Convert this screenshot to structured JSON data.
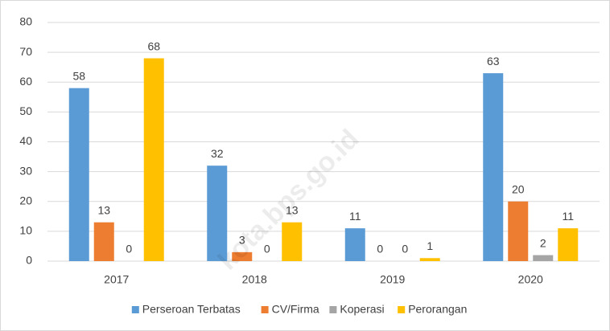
{
  "chart_data": {
    "type": "bar",
    "categories": [
      "2017",
      "2018",
      "2019",
      "2020"
    ],
    "series": [
      {
        "name": "Perseroan Terbatas",
        "color": "#5b9bd5",
        "values": [
          58,
          32,
          11,
          63
        ]
      },
      {
        "name": "CV/Firma",
        "color": "#ed7d31",
        "values": [
          13,
          3,
          0,
          20
        ]
      },
      {
        "name": "Koperasi",
        "color": "#a5a5a5",
        "values": [
          0,
          0,
          0,
          2
        ]
      },
      {
        "name": "Perorangan",
        "color": "#ffc000",
        "values": [
          68,
          13,
          1,
          11
        ]
      }
    ],
    "ylim": [
      0,
      80
    ],
    "yticks": [
      0,
      10,
      20,
      30,
      40,
      50,
      60,
      70,
      80
    ],
    "grid": true,
    "legend": "bottom",
    "watermark": "kota.bps.go.id"
  }
}
